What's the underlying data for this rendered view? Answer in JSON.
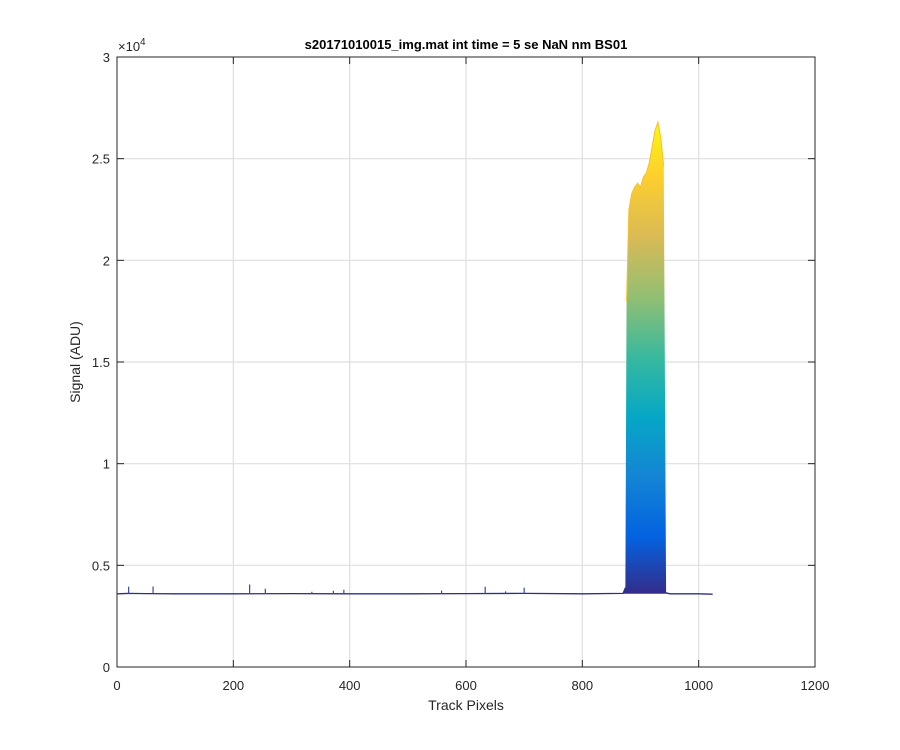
{
  "chart_data": {
    "type": "area",
    "title": "s20171010015_img.mat int time = 5 se  NaN nm BS01",
    "xlabel": "Track Pixels",
    "ylabel": "Signal (ADU)",
    "y_exponent_label": "×10",
    "y_exponent_power": "4",
    "xlim": [
      0,
      1200
    ],
    "ylim": [
      0,
      30000
    ],
    "xticks": [
      0,
      200,
      400,
      600,
      800,
      1000,
      1200
    ],
    "yticks": [
      0,
      5000,
      10000,
      15000,
      20000,
      25000,
      30000
    ],
    "xtick_labels": [
      "0",
      "200",
      "400",
      "600",
      "800",
      "1000",
      "1200"
    ],
    "ytick_labels": [
      "0",
      "0.5",
      "1",
      "1.5",
      "2",
      "2.5",
      "3"
    ],
    "grid": true,
    "colormap": "parula",
    "colormap_stops": [
      "#352a87",
      "#0363e1",
      "#1485d4",
      "#06a7c6",
      "#38b99e",
      "#92bf73",
      "#d9ba56",
      "#fcce2e",
      "#f9fb0e"
    ],
    "baseline_color": "#2e2e8a",
    "series": [
      {
        "x": [
          1,
          20,
          50,
          100,
          200,
          300,
          400,
          500,
          600,
          700,
          800,
          870,
          874,
          876,
          880,
          885,
          890,
          895,
          900,
          905,
          910,
          915,
          920,
          925,
          930,
          935,
          940,
          944,
          950,
          1000,
          1024
        ],
        "y": [
          3600,
          3620,
          3610,
          3600,
          3600,
          3610,
          3600,
          3600,
          3610,
          3620,
          3600,
          3620,
          3900,
          18000,
          22500,
          23300,
          23600,
          23800,
          23600,
          24100,
          24300,
          24800,
          25600,
          26400,
          26800,
          26000,
          24600,
          3650,
          3600,
          3600,
          3580
        ]
      }
    ],
    "spikes": [
      {
        "x": 20,
        "y": 3950
      },
      {
        "x": 62,
        "y": 3960
      },
      {
        "x": 228,
        "y": 4060
      },
      {
        "x": 255,
        "y": 3850
      },
      {
        "x": 335,
        "y": 3700
      },
      {
        "x": 372,
        "y": 3750
      },
      {
        "x": 390,
        "y": 3800
      },
      {
        "x": 558,
        "y": 3760
      },
      {
        "x": 633,
        "y": 3950
      },
      {
        "x": 668,
        "y": 3720
      },
      {
        "x": 700,
        "y": 3900
      }
    ]
  }
}
